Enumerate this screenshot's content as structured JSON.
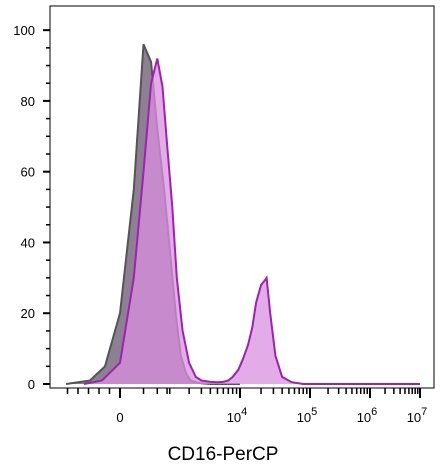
{
  "chart_data": {
    "type": "area",
    "title": "",
    "xlabel": "CD16-PerCP",
    "ylabel": "",
    "xscale": "biexponential",
    "ylim": [
      0,
      104
    ],
    "grid": false,
    "legend": "none",
    "y_ticks": [
      "0",
      "20",
      "40",
      "60",
      "80",
      "100"
    ],
    "x_ticks": [
      {
        "base": "0",
        "exp": ""
      },
      {
        "base": "10",
        "exp": "4"
      },
      {
        "base": "10",
        "exp": "5"
      },
      {
        "base": "10",
        "exp": "6"
      },
      {
        "base": "10",
        "exp": "7"
      }
    ],
    "series": [
      {
        "color": "#555555",
        "fill": "#7a6a80",
        "x": [
          -900,
          -500,
          -250,
          0,
          150,
          300,
          450,
          600,
          800,
          1000,
          1250,
          1500,
          1800,
          2100,
          2500,
          3000,
          4000,
          6000,
          10000
        ],
        "values": [
          0,
          1,
          5,
          20,
          55,
          96,
          91,
          72,
          55,
          38,
          20,
          8,
          3,
          1,
          0.5,
          0.2,
          0,
          0,
          0
        ]
      },
      {
        "color": "#a020b0",
        "fill": "#d98fe0",
        "x": [
          -600,
          -300,
          0,
          150,
          300,
          450,
          600,
          750,
          900,
          1100,
          1300,
          1600,
          2000,
          2500,
          3000,
          4000,
          5000,
          6000,
          7000,
          8000,
          9500,
          11000,
          13000,
          15000,
          17000,
          20000,
          22000,
          24000,
          27000,
          32000,
          40000,
          55000,
          80000,
          150000,
          400000,
          1000000,
          10000000
        ],
        "values": [
          0,
          1,
          6,
          30,
          60,
          85,
          92,
          84,
          68,
          50,
          30,
          15,
          6,
          2,
          1,
          0.6,
          0.5,
          0.6,
          1,
          2,
          4,
          7,
          11,
          16,
          23,
          28,
          29,
          30,
          20,
          8,
          2,
          0.5,
          0,
          0,
          0,
          0,
          0
        ]
      }
    ]
  }
}
